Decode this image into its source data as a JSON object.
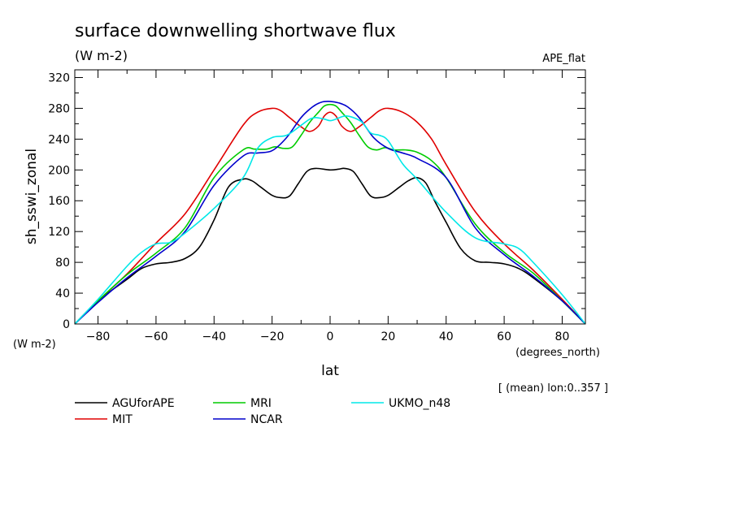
{
  "chart_data": {
    "type": "line",
    "title": "surface downwelling shortwave flux",
    "units": "(W m-2)",
    "dataset": "APE_flat",
    "xlabel": "lat",
    "xunits": "(degrees_north)",
    "ylabel": "sh_sswi_zonal",
    "yunits": "(W m-2)",
    "note": "[ (mean) lon:0..357 ]",
    "xlim": [
      -88,
      88
    ],
    "ylim": [
      0,
      330
    ],
    "xticks": [
      -80,
      -60,
      -40,
      -20,
      0,
      20,
      40,
      60,
      80
    ],
    "yticks": [
      0,
      40,
      80,
      120,
      160,
      200,
      240,
      280,
      320
    ],
    "series": [
      {
        "name": "AGUforAPE",
        "color": "#000000",
        "x": [
          -88,
          -80,
          -70,
          -65,
          -60,
          -55,
          -50,
          -45,
          -40,
          -35,
          -30,
          -27,
          -24,
          -20,
          -17,
          -14,
          -11,
          -8,
          -5,
          0,
          3,
          5,
          8,
          11,
          14,
          17,
          20,
          24,
          27,
          30,
          33,
          36,
          40,
          45,
          50,
          55,
          60,
          65,
          70,
          80,
          88
        ],
        "values": [
          0,
          30,
          58,
          72,
          78,
          80,
          85,
          100,
          135,
          178,
          188,
          186,
          178,
          167,
          164,
          166,
          182,
          198,
          202,
          200,
          201,
          202,
          198,
          182,
          166,
          164,
          167,
          178,
          186,
          190,
          183,
          160,
          132,
          98,
          82,
          80,
          78,
          72,
          60,
          30,
          0
        ]
      },
      {
        "name": "MIT",
        "color": "#e00000",
        "x": [
          -88,
          -80,
          -70,
          -60,
          -50,
          -40,
          -30,
          -25,
          -20,
          -17,
          -14,
          -10,
          -7,
          -4,
          -2,
          0,
          2,
          4,
          7,
          10,
          14,
          17,
          20,
          25,
          30,
          35,
          40,
          50,
          60,
          70,
          80,
          88
        ],
        "values": [
          0,
          30,
          65,
          105,
          143,
          200,
          258,
          275,
          280,
          277,
          268,
          256,
          250,
          257,
          270,
          275,
          270,
          257,
          250,
          256,
          268,
          277,
          280,
          275,
          262,
          240,
          207,
          146,
          104,
          70,
          32,
          0
        ]
      },
      {
        "name": "MRI",
        "color": "#00cc00",
        "x": [
          -88,
          -80,
          -70,
          -60,
          -50,
          -40,
          -30,
          -26,
          -22,
          -19,
          -16,
          -13,
          -10,
          -7,
          -4,
          -2,
          0,
          2,
          4,
          7,
          10,
          13,
          16,
          19,
          22,
          26,
          30,
          35,
          40,
          50,
          60,
          70,
          80,
          88
        ],
        "values": [
          0,
          30,
          64,
          92,
          125,
          190,
          226,
          227,
          227,
          230,
          228,
          230,
          245,
          262,
          275,
          283,
          285,
          283,
          275,
          262,
          245,
          230,
          226,
          229,
          226,
          226,
          223,
          212,
          190,
          130,
          93,
          66,
          30,
          0
        ]
      },
      {
        "name": "NCAR",
        "color": "#0000cc",
        "x": [
          -88,
          -80,
          -70,
          -60,
          -50,
          -40,
          -30,
          -25,
          -20,
          -15,
          -10,
          -6,
          -3,
          0,
          3,
          6,
          10,
          15,
          20,
          25,
          30,
          40,
          50,
          60,
          70,
          80,
          88
        ],
        "values": [
          0,
          28,
          60,
          88,
          120,
          180,
          218,
          222,
          225,
          242,
          268,
          282,
          288,
          289,
          287,
          282,
          268,
          242,
          228,
          222,
          215,
          190,
          125,
          90,
          62,
          30,
          0
        ]
      },
      {
        "name": "UKMO_n48",
        "color": "#00e8e8",
        "x": [
          -88,
          -80,
          -70,
          -65,
          -60,
          -55,
          -50,
          -40,
          -30,
          -25,
          -20,
          -15,
          -10,
          -7,
          -5,
          -2,
          0,
          2,
          5,
          8,
          11,
          14,
          17,
          20,
          25,
          30,
          40,
          50,
          60,
          65,
          70,
          80,
          88
        ],
        "values": [
          0,
          32,
          75,
          93,
          104,
          106,
          118,
          150,
          190,
          228,
          242,
          245,
          258,
          266,
          268,
          266,
          264,
          266,
          270,
          268,
          262,
          248,
          245,
          238,
          208,
          188,
          145,
          112,
          104,
          98,
          80,
          38,
          0
        ]
      }
    ]
  }
}
